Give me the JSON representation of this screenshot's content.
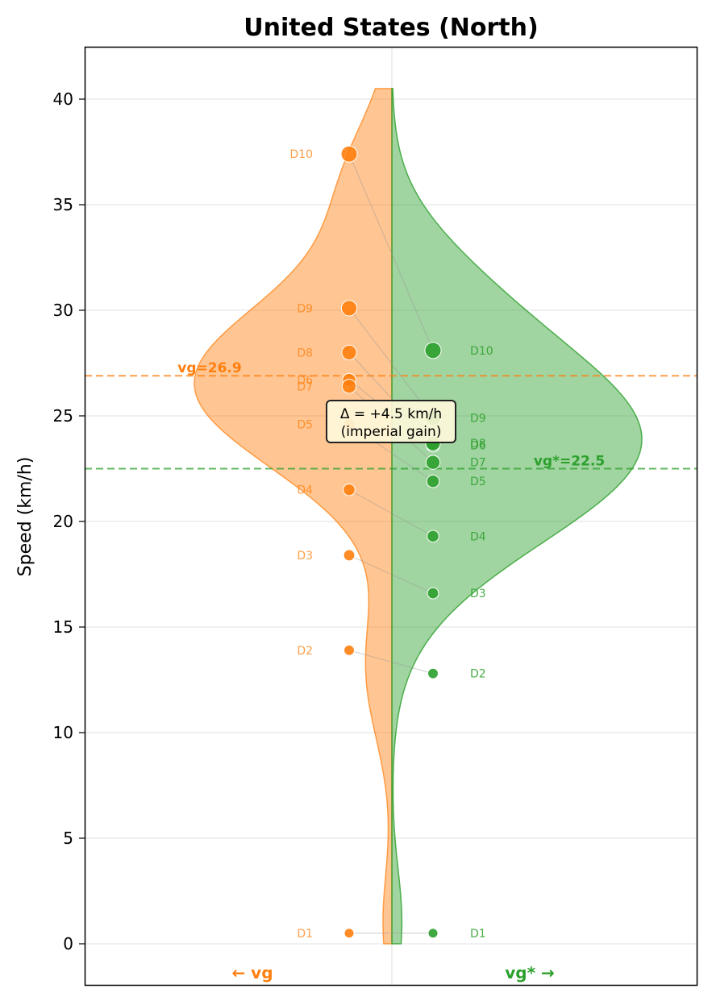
{
  "chart_data": {
    "type": "violin",
    "title": "United States (North)",
    "ylabel": "Speed (km/h)",
    "ylim": [
      -1.96,
      42.5
    ],
    "yticks": [
      0,
      5,
      10,
      15,
      20,
      25,
      30,
      35,
      40
    ],
    "grid": true,
    "colors": {
      "vg": "#ff7f0e",
      "vg_star": "#2ca02c"
    },
    "side_labels": {
      "left": "← vg",
      "right": "vg* →"
    },
    "series": [
      {
        "key": "vg",
        "points": [
          {
            "label": "D1",
            "value": 0.5
          },
          {
            "label": "D2",
            "value": 13.9
          },
          {
            "label": "D3",
            "value": 18.4
          },
          {
            "label": "D4",
            "value": 21.5
          },
          {
            "label": "D5",
            "value": 24.6
          },
          {
            "label": "D6",
            "value": 26.7
          },
          {
            "label": "D7",
            "value": 26.4
          },
          {
            "label": "D8",
            "value": 28.0
          },
          {
            "label": "D9",
            "value": 30.1
          },
          {
            "label": "D10",
            "value": 37.4
          }
        ]
      },
      {
        "key": "vg_star",
        "points": [
          {
            "label": "D1",
            "value": 0.5
          },
          {
            "label": "D2",
            "value": 12.8
          },
          {
            "label": "D3",
            "value": 16.6
          },
          {
            "label": "D4",
            "value": 19.3
          },
          {
            "label": "D5",
            "value": 21.9
          },
          {
            "label": "D6",
            "value": 23.6
          },
          {
            "label": "D7",
            "value": 22.8
          },
          {
            "label": "D8",
            "value": 23.7
          },
          {
            "label": "D9",
            "value": 24.9
          },
          {
            "label": "D10",
            "value": 28.1
          }
        ]
      }
    ],
    "reference_lines": [
      {
        "key": "vg",
        "value": 26.9,
        "label": "vg=26.9"
      },
      {
        "key": "vg_star",
        "value": 22.5,
        "label": "vg*=22.5"
      }
    ],
    "annotation": {
      "line1": "Δ = +4.5 km/h",
      "line2": "(imperial gain)"
    }
  }
}
